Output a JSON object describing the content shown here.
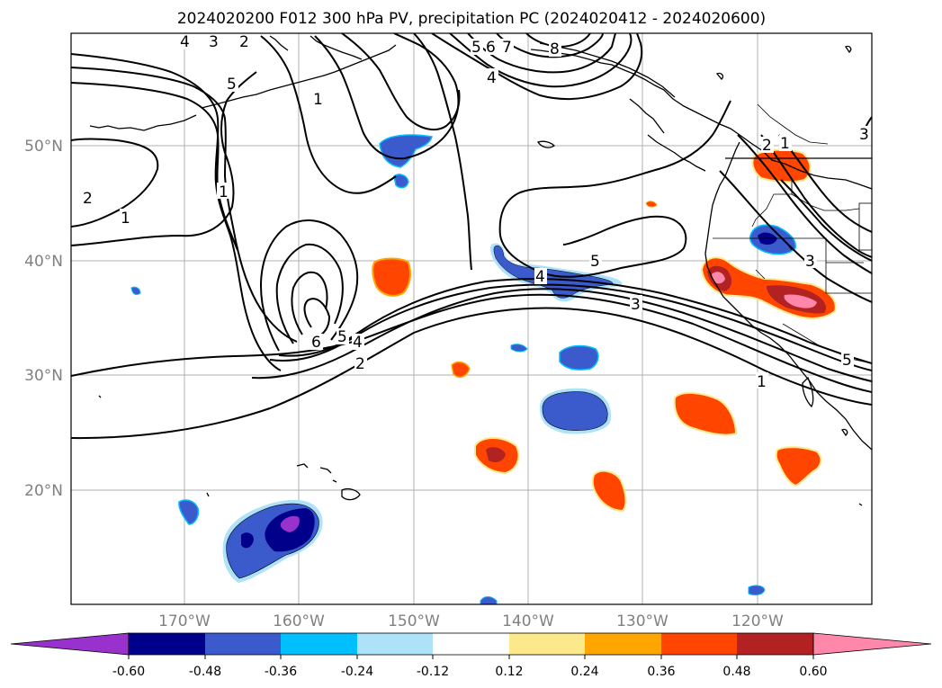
{
  "title": "2024020200 F012 300 hPa PV, precipitation PC (2024020412 - 2024020600)",
  "latitude_labels": [
    "50°N",
    "40°N",
    "30°N",
    "20°N"
  ],
  "longitude_labels": [
    "170°W",
    "160°W",
    "150°W",
    "140°W",
    "130°W",
    "120°W"
  ],
  "colorbar": {
    "tick_labels": [
      "-0.60",
      "-0.48",
      "-0.36",
      "-0.24",
      "-0.12",
      "0.12",
      "0.24",
      "0.36",
      "0.48",
      "0.60"
    ],
    "colors": [
      "#9932CC",
      "#00008B",
      "#3B5BCD",
      "#00BFFF",
      "#AEE2F8",
      "#FFFFFF",
      "#FCE98C",
      "#FFA500",
      "#FF4500",
      "#B22222",
      "#FF88AA"
    ]
  },
  "contour_labels": [
    "4",
    "3",
    "2",
    "5",
    "5",
    "6",
    "7",
    "8",
    "4",
    "1",
    "1",
    "2",
    "1",
    "5",
    "4",
    "3",
    "6",
    "5",
    "4",
    "2",
    "2",
    "1",
    "3",
    "5",
    "1",
    "3"
  ],
  "colors": {
    "gridline": "#b0b0b0",
    "contour": "#000000",
    "label_gray": "#808080"
  }
}
